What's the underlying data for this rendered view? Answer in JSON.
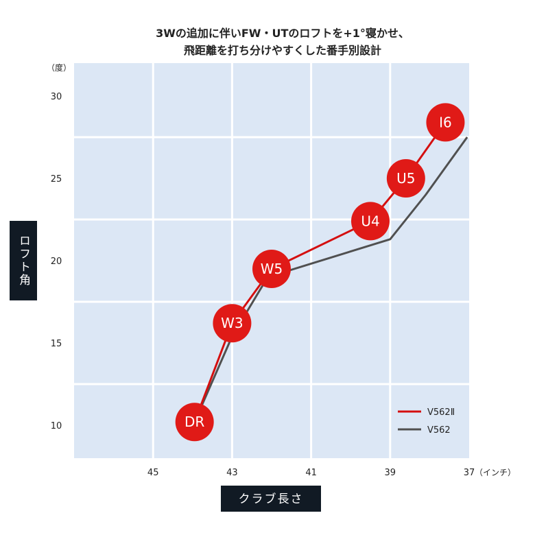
{
  "chart_data": {
    "type": "line",
    "title_lines": [
      "3Wの追加に伴いFW・UTのロフトを+1°寝かせ、",
      "飛距離を打ち分けやすくした番手別設計"
    ],
    "xlabel": "クラブ長さ",
    "ylabel": "ロフト角",
    "x_unit": "（インチ）",
    "y_unit": "（度）",
    "x_ticks": [
      45,
      43,
      41,
      39,
      37
    ],
    "y_ticks": [
      10,
      15,
      20,
      25,
      30
    ],
    "xlim": [
      47,
      37
    ],
    "ylim": [
      8,
      32
    ],
    "grid": true,
    "legend_position": "bottom-right",
    "series": [
      {
        "name": "V562Ⅱ",
        "color": "#d40f0f",
        "points": [
          {
            "label": "DR",
            "x": 43.95,
            "y": 10.2
          },
          {
            "label": "W3",
            "x": 43.0,
            "y": 16.2
          },
          {
            "label": "W5",
            "x": 42.0,
            "y": 19.5
          },
          {
            "label": "U4",
            "x": 39.5,
            "y": 22.4
          },
          {
            "label": "U5",
            "x": 38.6,
            "y": 25.0
          },
          {
            "label": "I6",
            "x": 37.6,
            "y": 28.4
          }
        ]
      },
      {
        "name": "V562",
        "color": "#505050",
        "points": [
          {
            "x": 43.95,
            "y": 10.2
          },
          {
            "x": 43.0,
            "y": 15.4
          },
          {
            "x": 42.1,
            "y": 19.0
          },
          {
            "x": 39.0,
            "y": 21.3
          },
          {
            "x": 38.1,
            "y": 24.0
          },
          {
            "x": 37.05,
            "y": 27.5
          }
        ]
      }
    ],
    "marker_color": "#e01a17"
  }
}
